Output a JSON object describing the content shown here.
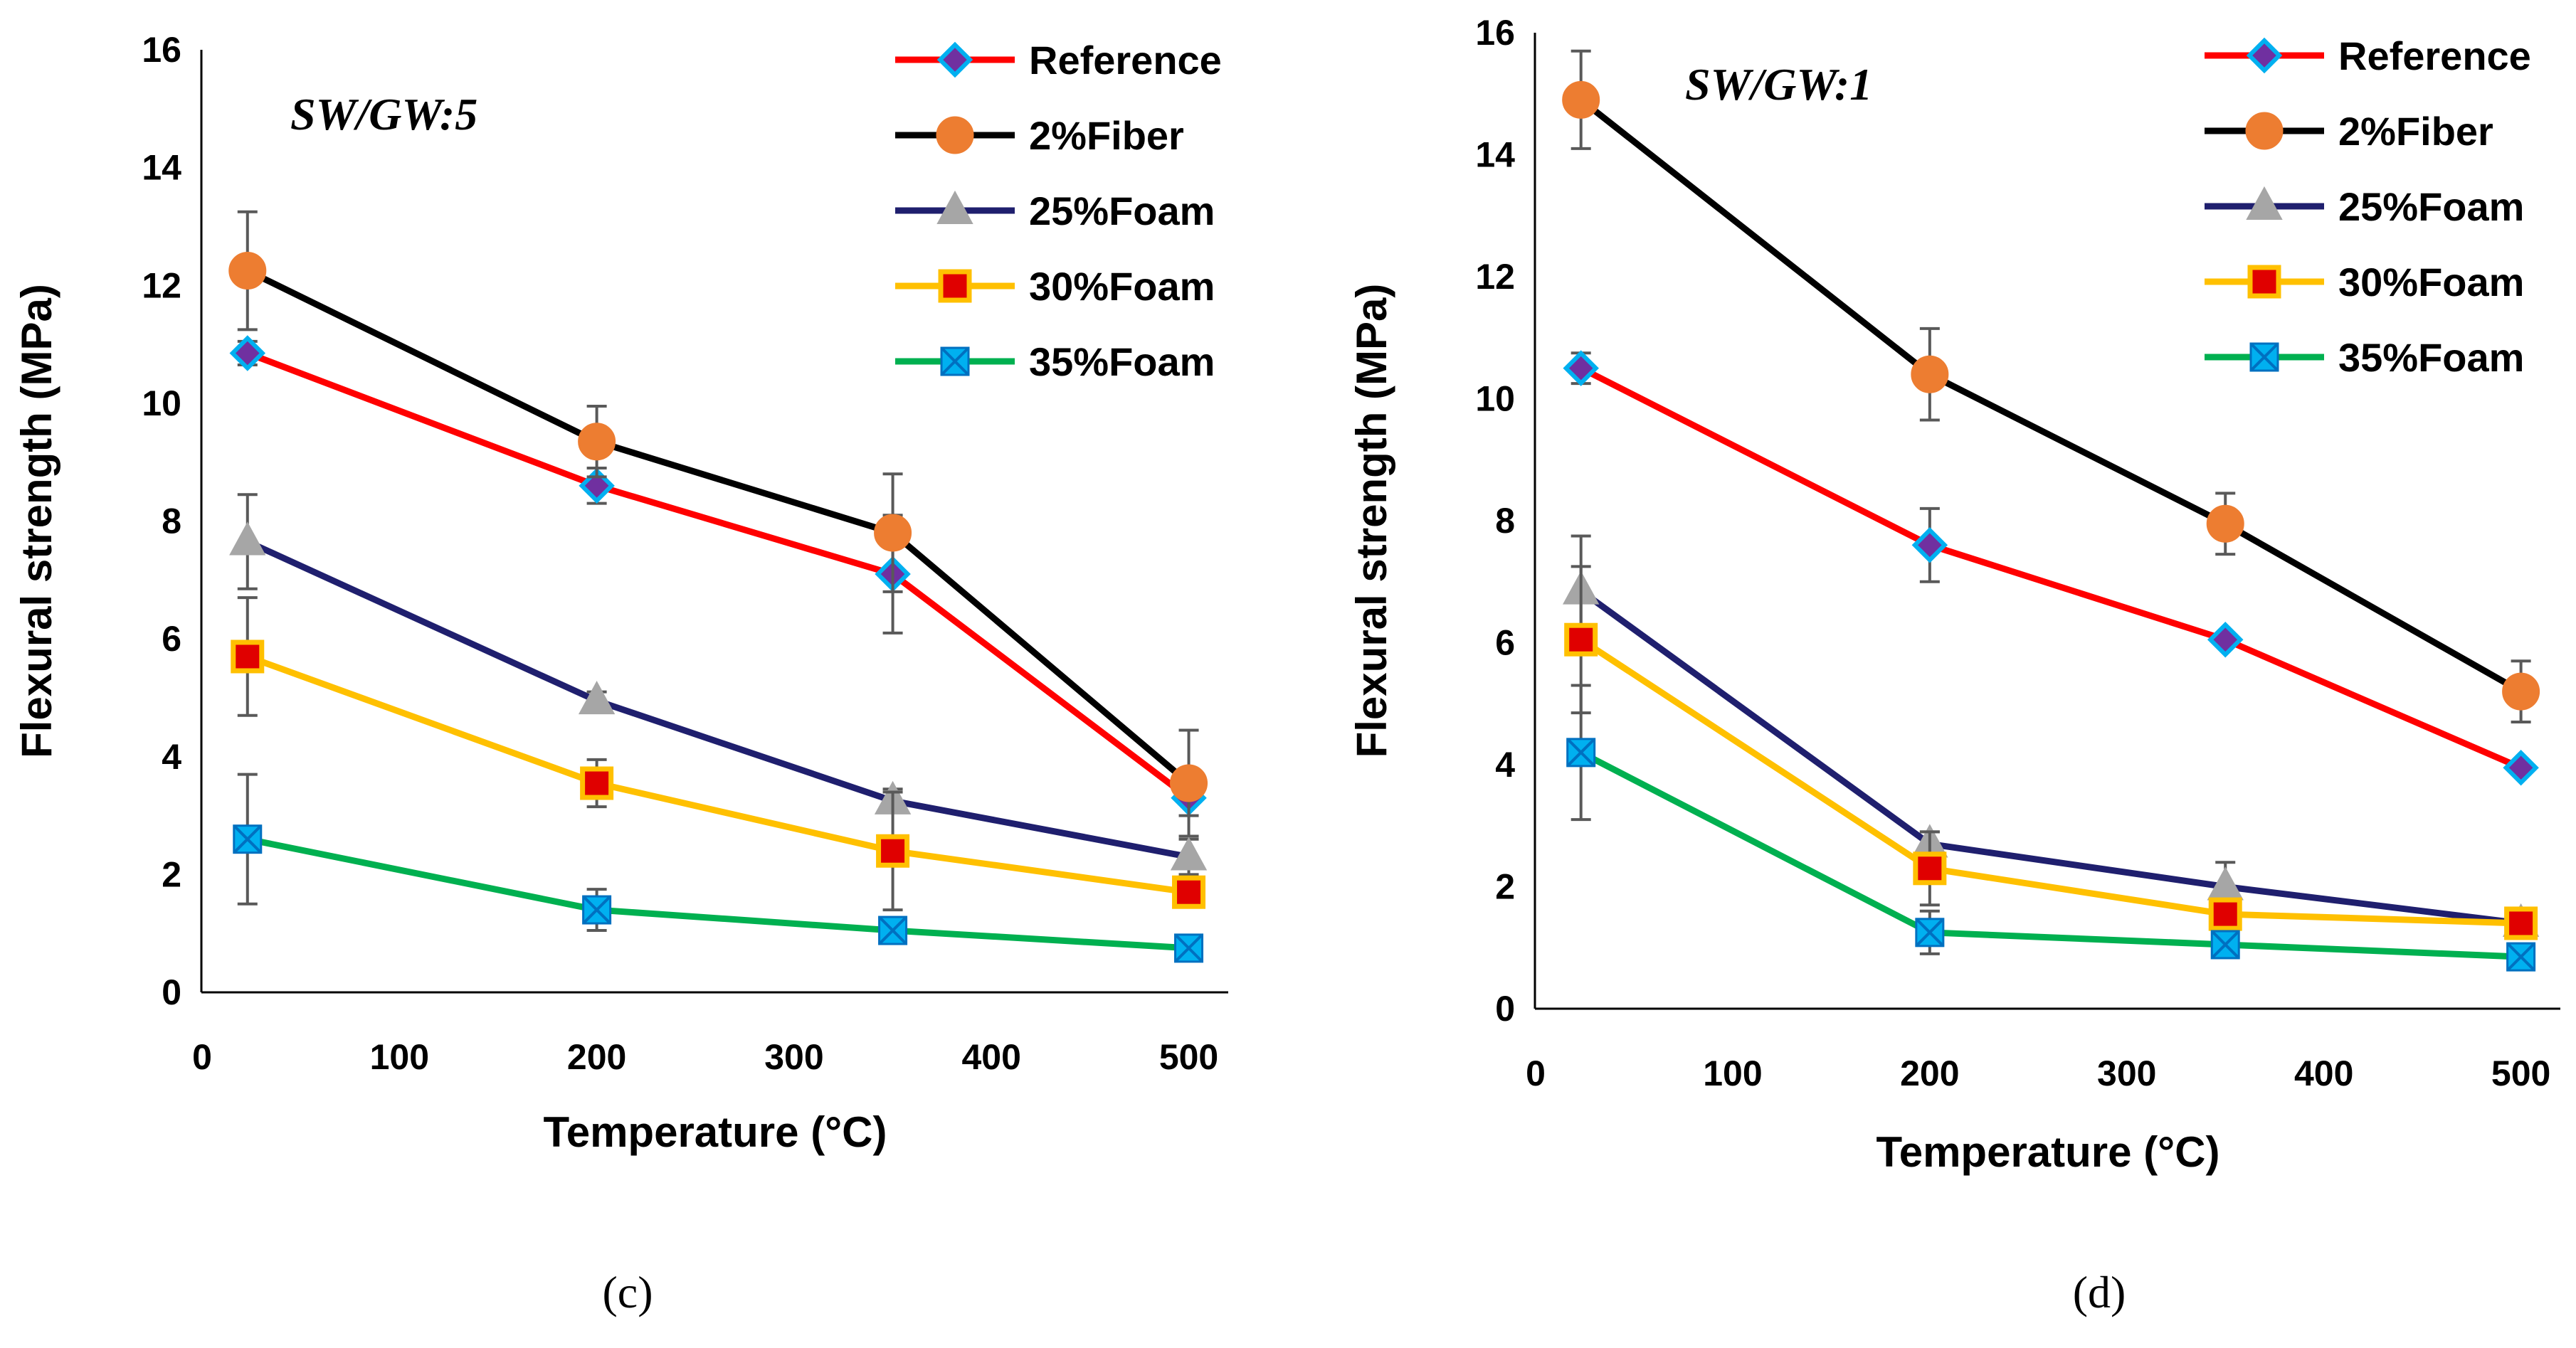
{
  "chart_data": [
    {
      "type": "line",
      "panel_caption": "(c)",
      "annotation": "SW/GW:5",
      "xlabel": "Temperature (°C)",
      "ylabel": "Flexural strength (MPa)",
      "xlim": [
        0,
        520
      ],
      "ylim": [
        0,
        16
      ],
      "xticks": [
        0,
        100,
        200,
        300,
        400,
        500
      ],
      "yticks": [
        0,
        2,
        4,
        6,
        8,
        10,
        12,
        14,
        16
      ],
      "x": [
        23,
        200,
        350,
        500
      ],
      "series": [
        {
          "name": "Reference",
          "marker": "diamond",
          "line_color": "#ff0000",
          "marker_fill": "#7030a0",
          "marker_edge": "#00b0f0",
          "values": [
            10.85,
            8.6,
            7.1,
            3.3
          ],
          "errors": [
            0.2,
            0.3,
            1.0,
            0.3
          ]
        },
        {
          "name": "2%Fiber",
          "marker": "circle",
          "line_color": "#000000",
          "marker_fill": "#ed7d31",
          "marker_edge": "#ed7d31",
          "values": [
            12.25,
            9.35,
            7.8,
            3.55
          ],
          "errors": [
            1.0,
            0.6,
            1.0,
            0.9
          ]
        },
        {
          "name": "25%Foam",
          "marker": "triangle",
          "line_color": "#1f1f6e",
          "marker_fill": "#a6a6a6",
          "marker_edge": "#a6a6a6",
          "values": [
            7.65,
            4.95,
            3.25,
            2.3
          ],
          "errors": [
            0.8,
            0.15,
            0.2,
            0.3
          ]
        },
        {
          "name": "30%Foam",
          "marker": "square",
          "line_color": "#ffc000",
          "marker_fill": "#e00000",
          "marker_edge": "#ffc000",
          "values": [
            5.7,
            3.55,
            2.4,
            1.7
          ],
          "errors": [
            1.0,
            0.4,
            1.0,
            0.2
          ]
        },
        {
          "name": "35%Foam",
          "marker": "xsquare",
          "line_color": "#00b050",
          "marker_fill": "#00b0f0",
          "marker_edge": "#0070c0",
          "values": [
            2.6,
            1.4,
            1.05,
            0.75
          ],
          "errors": [
            1.1,
            0.35,
            0.2,
            0.1
          ]
        }
      ]
    },
    {
      "type": "line",
      "panel_caption": "(d)",
      "annotation": "SW/GW:1",
      "xlabel": "Temperature (°C)",
      "ylabel": "Flexural strength (MPa)",
      "xlim": [
        0,
        520
      ],
      "ylim": [
        0,
        16
      ],
      "xticks": [
        0,
        100,
        200,
        300,
        400,
        500
      ],
      "yticks": [
        0,
        2,
        4,
        6,
        8,
        10,
        12,
        14,
        16
      ],
      "x": [
        23,
        200,
        350,
        500
      ],
      "series": [
        {
          "name": "Reference",
          "marker": "diamond",
          "line_color": "#ff0000",
          "marker_fill": "#7030a0",
          "marker_edge": "#00b0f0",
          "values": [
            10.5,
            7.6,
            6.05,
            3.95
          ],
          "errors": [
            0.25,
            0.6,
            0.1,
            0.1
          ]
        },
        {
          "name": "2%Fiber",
          "marker": "circle",
          "line_color": "#000000",
          "marker_fill": "#ed7d31",
          "marker_edge": "#ed7d31",
          "values": [
            14.9,
            10.4,
            7.95,
            5.2
          ],
          "errors": [
            0.8,
            0.75,
            0.5,
            0.5
          ]
        },
        {
          "name": "25%Foam",
          "marker": "triangle",
          "line_color": "#1f1f6e",
          "marker_fill": "#a6a6a6",
          "marker_edge": "#a6a6a6",
          "values": [
            6.85,
            2.7,
            2.0,
            1.4
          ],
          "errors": [
            0.9,
            0.2,
            0.4,
            0.1
          ]
        },
        {
          "name": "30%Foam",
          "marker": "square",
          "line_color": "#ffc000",
          "marker_fill": "#e00000",
          "marker_edge": "#ffc000",
          "values": [
            6.05,
            2.3,
            1.55,
            1.4
          ],
          "errors": [
            1.2,
            0.6,
            0.2,
            0.1
          ]
        },
        {
          "name": "35%Foam",
          "marker": "xsquare",
          "line_color": "#00b050",
          "marker_fill": "#00b0f0",
          "marker_edge": "#0070c0",
          "values": [
            4.2,
            1.25,
            1.05,
            0.85
          ],
          "errors": [
            1.1,
            0.35,
            0.1,
            0.1
          ]
        }
      ]
    }
  ]
}
